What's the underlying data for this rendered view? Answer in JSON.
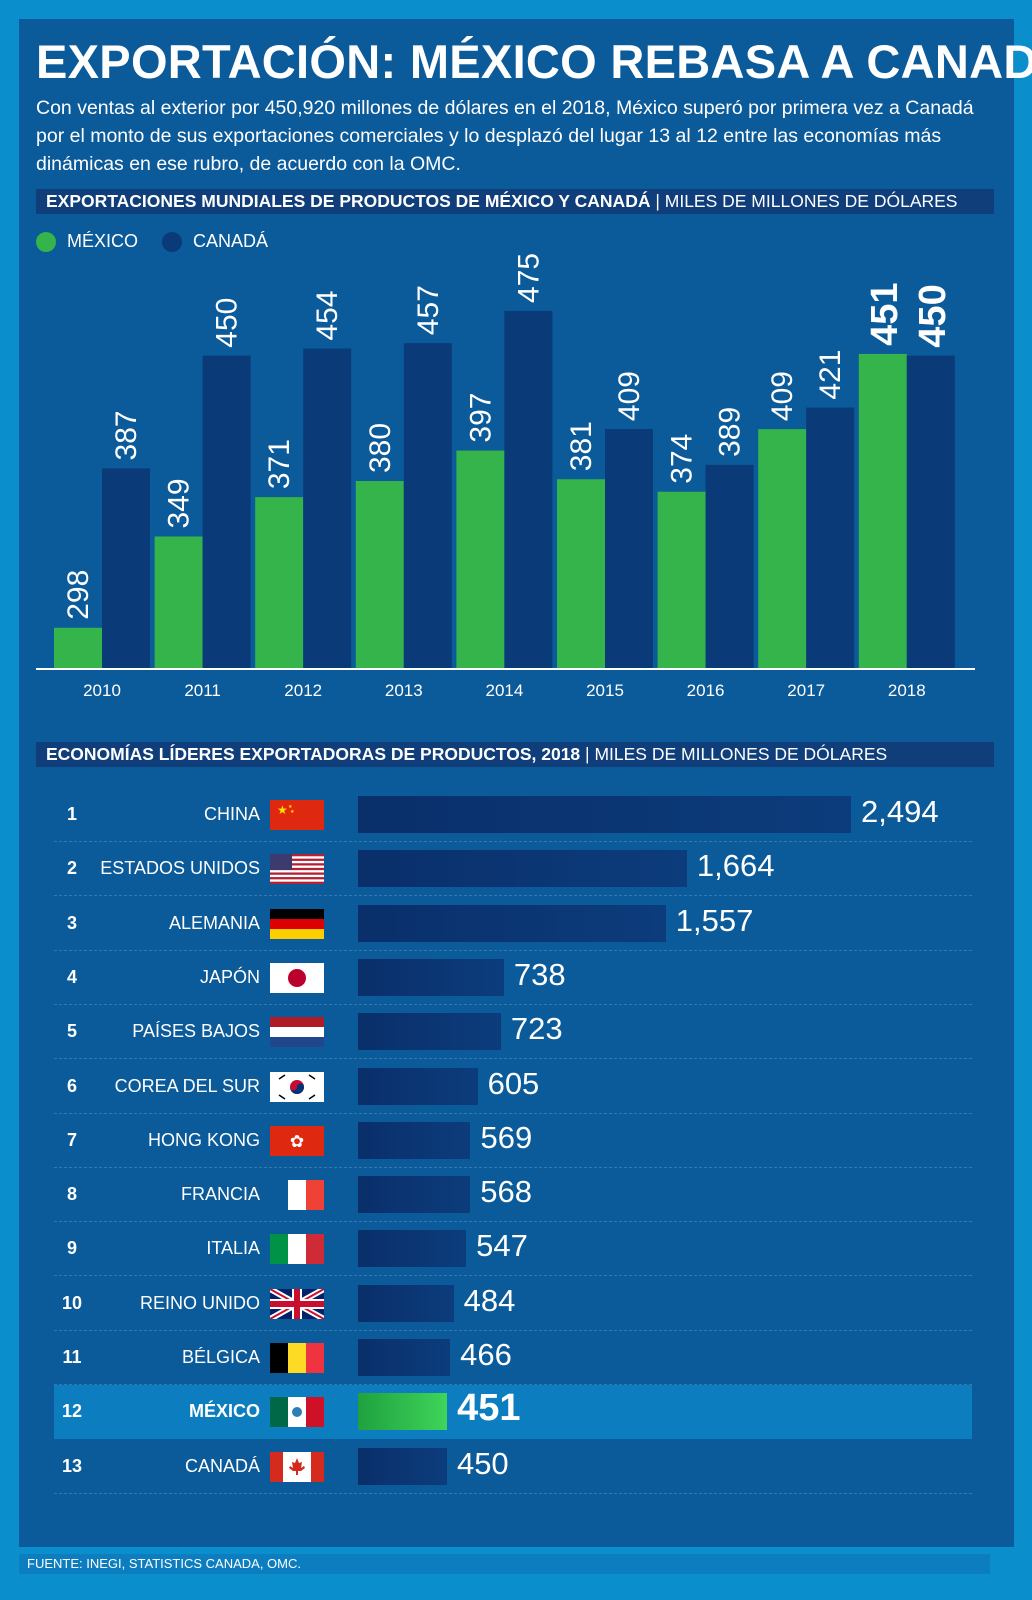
{
  "title": "EXPORTACIÓN: MÉXICO REBASA A CANADÁ",
  "intro": "Con ventas al exterior por 450,920 millones de dólares en el 2018, México superó por primera vez a Canadá por el monto de sus exportaciones comerciales y lo desplazó del lugar 13 al 12 entre las economías más dinámicas en ese rubro, de acuerdo con la OMC.",
  "section1": {
    "title": "EXPORTACIONES MUNDIALES DE PRODUCTOS DE MÉXICO Y CANADÁ",
    "unit": "MILES DE MILLONES DE DÓLARES"
  },
  "section2": {
    "title": "ECONOMÍAS LÍDERES EXPORTADORAS DE PRODUCTOS, 2018",
    "unit": "MILES DE MILLONES DE DÓLARES"
  },
  "source": "FUENTE: INEGI, STATISTICS CANADA, OMC.",
  "colors": {
    "mexico": "#34b44a",
    "canada": "#0b3a78",
    "panel": "#0b5a9a",
    "frame": "#0a8fcc"
  },
  "chart_data": [
    {
      "type": "bar",
      "title": "EXPORTACIONES MUNDIALES DE PRODUCTOS DE MÉXICO Y CANADÁ",
      "ylabel": "MILES DE MILLONES DE DÓLARES",
      "xlabel": "",
      "legend": "top-left",
      "grid": false,
      "ylim": [
        260,
        520
      ],
      "categories": [
        "2010",
        "2011",
        "2012",
        "2013",
        "2014",
        "2015",
        "2016",
        "2017",
        "2018"
      ],
      "series": [
        {
          "name": "MÉXICO",
          "values": [
            298,
            349,
            371,
            380,
            397,
            381,
            374,
            409,
            451
          ]
        },
        {
          "name": "CANADÁ",
          "values": [
            387,
            450,
            454,
            457,
            475,
            409,
            389,
            421,
            450
          ]
        }
      ]
    },
    {
      "type": "bar",
      "orientation": "horizontal",
      "title": "ECONOMÍAS LÍDERES EXPORTADORAS DE PRODUCTOS, 2018",
      "ylabel": "MILES DE MILLONES DE DÓLARES",
      "xlim": [
        0,
        2494
      ],
      "items": [
        {
          "rank": "1",
          "name": "CHINA",
          "flag": "china-flag-icon",
          "value": 2494,
          "label": "2,494"
        },
        {
          "rank": "2",
          "name": "ESTADOS UNIDOS",
          "flag": "usa-flag-icon",
          "value": 1664,
          "label": "1,664"
        },
        {
          "rank": "3",
          "name": "ALEMANIA",
          "flag": "germany-flag-icon",
          "value": 1557,
          "label": "1,557"
        },
        {
          "rank": "4",
          "name": "JAPÓN",
          "flag": "japan-flag-icon",
          "value": 738,
          "label": "738"
        },
        {
          "rank": "5",
          "name": "PAÍSES BAJOS",
          "flag": "netherlands-flag-icon",
          "value": 723,
          "label": "723"
        },
        {
          "rank": "6",
          "name": "COREA DEL SUR",
          "flag": "korea-flag-icon",
          "value": 605,
          "label": "605"
        },
        {
          "rank": "7",
          "name": "HONG KONG",
          "flag": "hongkong-flag-icon",
          "value": 569,
          "label": "569"
        },
        {
          "rank": "8",
          "name": "FRANCIA",
          "flag": "france-flag-icon",
          "value": 568,
          "label": "568"
        },
        {
          "rank": "9",
          "name": "ITALIA",
          "flag": "italy-flag-icon",
          "value": 547,
          "label": "547"
        },
        {
          "rank": "10",
          "name": "REINO UNIDO",
          "flag": "uk-flag-icon",
          "value": 484,
          "label": "484"
        },
        {
          "rank": "11",
          "name": "BÉLGICA",
          "flag": "belgium-flag-icon",
          "value": 466,
          "label": "466"
        },
        {
          "rank": "12",
          "name": "MÉXICO",
          "flag": "mexico-flag-icon",
          "value": 451,
          "label": "451",
          "highlight": true
        },
        {
          "rank": "13",
          "name": "CANADÁ",
          "flag": "canada-flag-icon",
          "value": 450,
          "label": "450"
        }
      ]
    }
  ]
}
